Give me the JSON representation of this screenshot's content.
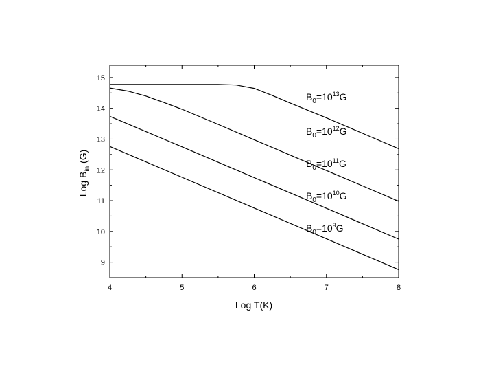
{
  "chart_data": {
    "type": "line",
    "title": "",
    "xlabel": "Log T(K)",
    "ylabel_parts": {
      "base": "Log B",
      "sub": "in",
      "unit": " (G)"
    },
    "xlim": [
      4,
      8
    ],
    "ylim": [
      8.5,
      15.4
    ],
    "xticks": [
      4,
      5,
      6,
      7,
      8
    ],
    "yticks": [
      9,
      10,
      11,
      12,
      13,
      14,
      15
    ],
    "grid": false,
    "legend": "none",
    "series": [
      {
        "label_parts": {
          "base": "B",
          "sub": "0",
          "mid": "=10",
          "sup": "13",
          "end": "G"
        },
        "x": [
          4.0,
          4.5,
          5.0,
          5.5,
          5.75,
          6.0,
          6.25,
          6.5,
          7.0,
          7.5,
          8.0
        ],
        "y": [
          14.78,
          14.78,
          14.78,
          14.78,
          14.76,
          14.65,
          14.42,
          14.17,
          13.69,
          13.19,
          12.69
        ]
      },
      {
        "label_parts": {
          "base": "B",
          "sub": "0",
          "mid": "=10",
          "sup": "12",
          "end": "G"
        },
        "x": [
          4.0,
          4.25,
          4.5,
          4.75,
          5.0,
          5.5,
          6.0,
          6.5,
          7.0,
          7.5,
          8.0
        ],
        "y": [
          14.66,
          14.56,
          14.4,
          14.19,
          13.97,
          13.48,
          12.98,
          12.48,
          11.98,
          11.48,
          10.98
        ]
      },
      {
        "label_parts": {
          "base": "B",
          "sub": "0",
          "mid": "=10",
          "sup": "11",
          "end": "G"
        },
        "x": [
          4.0,
          5.0,
          6.0,
          7.0,
          8.0
        ],
        "y": [
          13.74,
          12.75,
          11.75,
          10.75,
          9.75
        ]
      },
      {
        "label_parts": {
          "base": "B",
          "sub": "0",
          "mid": "=10",
          "sup": "10",
          "end": "G"
        },
        "x": [
          4.0,
          5.0,
          6.0,
          7.0,
          8.0
        ],
        "y": [
          12.76,
          11.76,
          10.76,
          9.76,
          8.76
        ]
      },
      {
        "label_parts": {
          "base": "B",
          "sub": "0",
          "mid": "=10",
          "sup": "9",
          "end": "G"
        },
        "x": [],
        "y": []
      }
    ],
    "line_color": "#000000"
  }
}
